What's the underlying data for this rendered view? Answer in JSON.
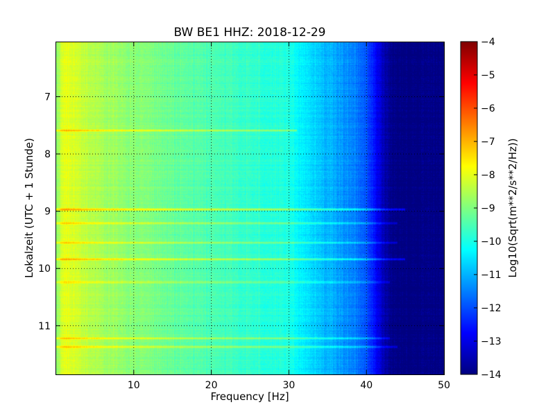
{
  "chart_data": {
    "type": "heatmap",
    "title": "BW BE1 HHZ: 2018-12-29",
    "xlabel": "Frequency [Hz]",
    "ylabel": "Lokalzeit (UTC + 1 Stunde)",
    "xlim": [
      0,
      50
    ],
    "ylim": [
      6.05,
      11.85
    ],
    "y_inverted": true,
    "x_ticks": [
      10,
      20,
      30,
      40,
      50
    ],
    "y_ticks": [
      7,
      8,
      9,
      10,
      11
    ],
    "grid": true,
    "colormap": "jet",
    "colorbar": {
      "label": "Log10(Sqrt(m**2/s**2/Hz))",
      "range": [
        -14,
        -4
      ],
      "ticks": [
        -4,
        -5,
        -6,
        -7,
        -8,
        -9,
        -10,
        -11,
        -12,
        -13,
        -14
      ]
    },
    "spectrum_profile": {
      "frequency_hz": [
        0,
        1,
        2,
        4,
        6,
        8,
        10,
        14,
        18,
        22,
        26,
        30,
        32,
        34,
        36,
        38,
        40,
        41,
        42,
        43,
        44,
        46,
        50
      ],
      "log10_amplitude": [
        -8.9,
        -8.0,
        -8.1,
        -8.4,
        -8.6,
        -8.8,
        -8.9,
        -9.2,
        -9.4,
        -9.6,
        -9.8,
        -10.0,
        -10.4,
        -10.8,
        -11.1,
        -11.4,
        -11.9,
        -12.6,
        -13.3,
        -13.8,
        -14.0,
        -14.0,
        -14.0
      ]
    },
    "bright_lines": [
      {
        "time_h": 8.97,
        "fmax_hz": 45,
        "log10_boost": 1.5
      },
      {
        "time_h": 9.21,
        "fmax_hz": 44,
        "log10_boost": 1.0
      },
      {
        "time_h": 9.55,
        "fmax_hz": 44,
        "log10_boost": 1.0
      },
      {
        "time_h": 9.84,
        "fmax_hz": 45,
        "log10_boost": 1.5
      },
      {
        "time_h": 10.24,
        "fmax_hz": 43,
        "log10_boost": 0.8
      },
      {
        "time_h": 11.22,
        "fmax_hz": 43,
        "log10_boost": 1.0
      },
      {
        "time_h": 11.37,
        "fmax_hz": 44,
        "log10_boost": 1.0
      },
      {
        "time_h": 7.59,
        "fmax_hz": 31,
        "log10_boost": 1.3
      }
    ]
  }
}
